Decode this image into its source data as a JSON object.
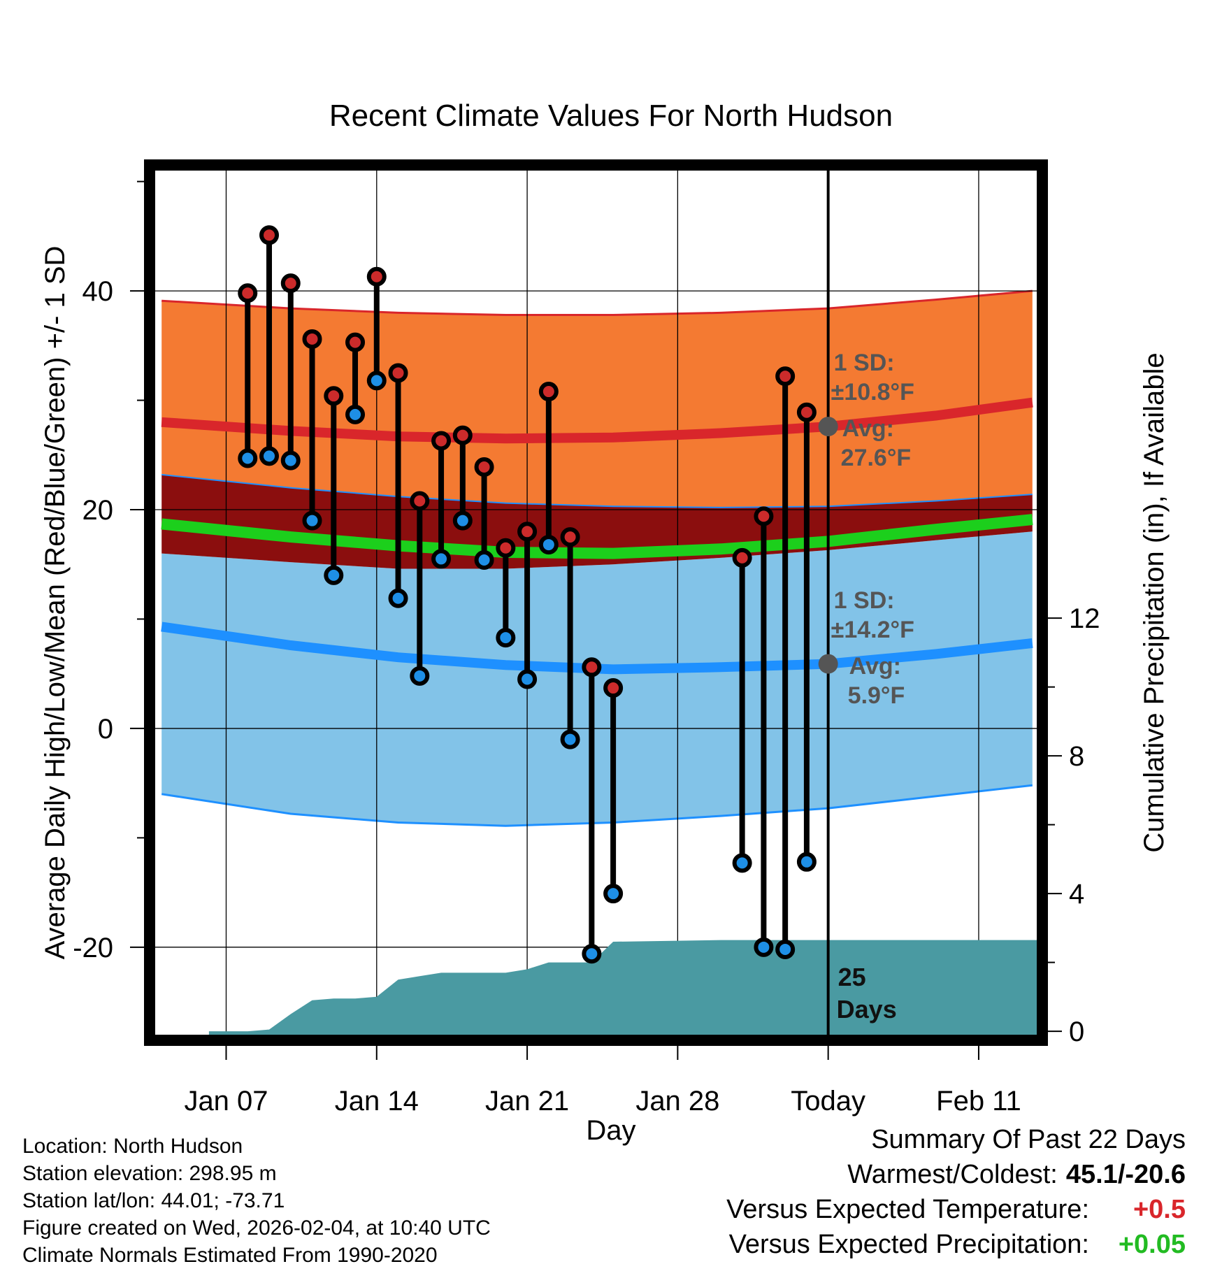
{
  "colors": {
    "high_band": "#f47a32",
    "high_line": "#d9262b",
    "overlap_band": "#8b0e0e",
    "low_band": "#82c3e8",
    "low_line": "#1e90ff",
    "mean_line": "#1ccf1c",
    "precip": "#4a9aa2",
    "high_marker": "#cc2b2b",
    "low_marker": "#1e8fe6",
    "annotation": "#555555",
    "temp_positive": "#d9262b",
    "precip_positive": "#22bb22"
  },
  "chart_data": {
    "type": "line",
    "title": "Recent Climate Values For North Hudson",
    "xlabel": "Day",
    "ylabel": "Average Daily High/Low/Mean (Red/Blue/Green) +/- 1 SD",
    "y2label": "Cumulative Precipitation (in), If Available",
    "x_tick_labels": [
      {
        "day": 7,
        "label": "Jan 07"
      },
      {
        "day": 14,
        "label": "Jan 14"
      },
      {
        "day": 21,
        "label": "Jan 21"
      },
      {
        "day": 28,
        "label": "Jan 28"
      },
      {
        "day": 35,
        "label": "Today"
      },
      {
        "day": 42,
        "label": "Feb 11"
      }
    ],
    "xlim": [
      3.7,
      44.7
    ],
    "ylim": [
      -28,
      51
    ],
    "y_ticks": [
      -20,
      0,
      20,
      40
    ],
    "y2lim": [
      -0.1,
      25
    ],
    "y2_ticks": [
      0,
      4,
      8,
      12
    ],
    "today_day": 35,
    "normals": {
      "days": [
        4,
        10,
        15,
        20,
        25,
        30,
        35,
        40,
        44.5
      ],
      "high_avg": [
        28.0,
        27.2,
        26.7,
        26.5,
        26.6,
        27.0,
        27.6,
        28.6,
        29.8
      ],
      "high_upper": [
        39.1,
        38.4,
        38.0,
        37.8,
        37.8,
        38.0,
        38.4,
        39.2,
        40.0
      ],
      "high_lower": [
        23.2,
        22.0,
        21.2,
        20.6,
        20.3,
        20.2,
        20.3,
        20.8,
        21.4
      ],
      "mean_avg": [
        18.7,
        17.5,
        16.7,
        16.1,
        16.0,
        16.4,
        17.1,
        18.2,
        19.1
      ],
      "low_avg": [
        9.3,
        7.6,
        6.5,
        5.8,
        5.4,
        5.6,
        5.9,
        6.8,
        7.8
      ],
      "low_upper": [
        16.0,
        15.2,
        14.6,
        14.6,
        15.0,
        15.6,
        16.3,
        17.2,
        18.0
      ],
      "low_lower": [
        -6.0,
        -7.8,
        -8.6,
        -8.9,
        -8.6,
        -8.0,
        -7.3,
        -6.2,
        -5.2
      ]
    },
    "observations": [
      {
        "day": 8,
        "high": 39.8,
        "low": 24.7
      },
      {
        "day": 9,
        "high": 45.1,
        "low": 24.9
      },
      {
        "day": 10,
        "high": 40.7,
        "low": 24.5
      },
      {
        "day": 11,
        "high": 35.6,
        "low": 19.0
      },
      {
        "day": 12,
        "high": 30.4,
        "low": 14.0
      },
      {
        "day": 13,
        "high": 35.3,
        "low": 28.7
      },
      {
        "day": 14,
        "high": 41.3,
        "low": 31.8
      },
      {
        "day": 15,
        "high": 32.5,
        "low": 11.9
      },
      {
        "day": 16,
        "high": 20.8,
        "low": 4.8
      },
      {
        "day": 17,
        "high": 26.3,
        "low": 15.5
      },
      {
        "day": 18,
        "high": 26.8,
        "low": 19.0
      },
      {
        "day": 19,
        "high": 23.9,
        "low": 15.4
      },
      {
        "day": 20,
        "high": 16.5,
        "low": 8.3
      },
      {
        "day": 21,
        "high": 18.0,
        "low": 4.5
      },
      {
        "day": 22,
        "high": 30.8,
        "low": 16.8
      },
      {
        "day": 23,
        "high": 17.5,
        "low": -1.0
      },
      {
        "day": 24,
        "high": 5.6,
        "low": -20.6
      },
      {
        "day": 25,
        "high": 3.7,
        "low": -15.1
      },
      {
        "day": 31,
        "high": 15.6,
        "low": -12.3
      },
      {
        "day": 32,
        "high": 19.4,
        "low": -20.0
      },
      {
        "day": 33,
        "high": 32.2,
        "low": -20.2
      },
      {
        "day": 34,
        "high": 28.9,
        "low": -12.2
      }
    ],
    "cumulative_precip": {
      "days": [
        6.2,
        7,
        8,
        9,
        10,
        11,
        12,
        13,
        14,
        15,
        16,
        17,
        18,
        19,
        20,
        21,
        22,
        23,
        24,
        25,
        30,
        35,
        44.7
      ],
      "values": [
        0,
        0,
        0,
        0.05,
        0.5,
        0.9,
        0.95,
        0.95,
        1.0,
        1.5,
        1.6,
        1.7,
        1.7,
        1.7,
        1.7,
        1.8,
        2.0,
        2.0,
        2.0,
        2.6,
        2.65,
        2.65,
        2.65
      ]
    },
    "annotations": {
      "high": {
        "sd_label": "1 SD:",
        "sd_value": "±10.8°F",
        "avg_label": "Avg:",
        "avg_value": "27.6°F",
        "avg": 27.6
      },
      "low": {
        "sd_label": "1 SD:",
        "sd_value": "±14.2°F",
        "avg_label": "Avg:",
        "avg_value": "5.9°F",
        "avg": 5.9
      },
      "days_number": "25",
      "days_word": "Days"
    }
  },
  "footer": {
    "location": "Location: North Hudson",
    "elevation": "Station elevation: 298.95 m",
    "latlon": "Station lat/lon: 44.01; -73.71",
    "created": "Figure created on Wed, 2026-02-04, at 10:40 UTC",
    "normals": "Climate Normals Estimated From 1990-2020"
  },
  "summary": {
    "title": "Summary Of Past 22 Days",
    "extremes_label": "Warmest/Coldest:",
    "extremes_value": "45.1/-20.6",
    "temp_label": "Versus Expected Temperature:",
    "temp_value": "+0.5",
    "precip_label": "Versus Expected Precipitation:",
    "precip_value": "+0.05"
  }
}
